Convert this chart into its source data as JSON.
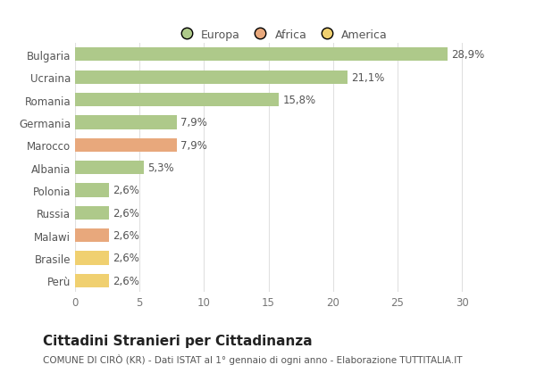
{
  "categories": [
    "Bulgaria",
    "Ucraina",
    "Romania",
    "Germania",
    "Marocco",
    "Albania",
    "Polonia",
    "Russia",
    "Malawi",
    "Brasile",
    "Perù"
  ],
  "values": [
    28.9,
    21.1,
    15.8,
    7.9,
    7.9,
    5.3,
    2.6,
    2.6,
    2.6,
    2.6,
    2.6
  ],
  "labels": [
    "28,9%",
    "21,1%",
    "15,8%",
    "7,9%",
    "7,9%",
    "5,3%",
    "2,6%",
    "2,6%",
    "2,6%",
    "2,6%",
    "2,6%"
  ],
  "colors": [
    "#aec98a",
    "#aec98a",
    "#aec98a",
    "#aec98a",
    "#e8a87c",
    "#aec98a",
    "#aec98a",
    "#aec98a",
    "#e8a87c",
    "#f0d070",
    "#f0d070"
  ],
  "legend_labels": [
    "Europa",
    "Africa",
    "America"
  ],
  "legend_colors": [
    "#aec98a",
    "#e8a87c",
    "#f0d070"
  ],
  "title": "Cittadini Stranieri per Cittadinanza",
  "subtitle": "COMUNE DI CIRÒ (KR) - Dati ISTAT al 1° gennaio di ogni anno - Elaborazione TUTTITALIA.IT",
  "xlim": [
    0,
    32
  ],
  "xticks": [
    0,
    5,
    10,
    15,
    20,
    25,
    30
  ],
  "bg_color": "#ffffff",
  "plot_bg_color": "#ffffff",
  "grid_color": "#e0e0e0",
  "title_fontsize": 11,
  "subtitle_fontsize": 7.5,
  "label_fontsize": 8.5,
  "tick_fontsize": 8.5,
  "legend_fontsize": 9
}
